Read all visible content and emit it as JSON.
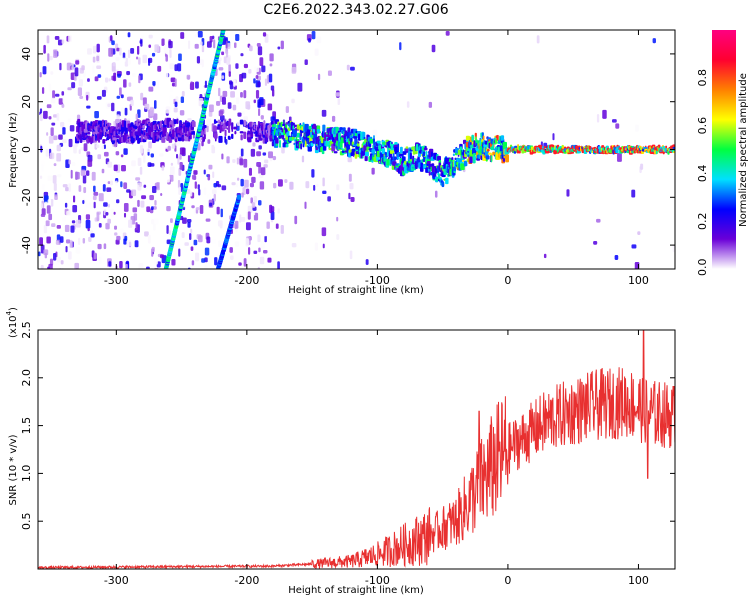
{
  "title": "C2E6.2022.343.02.27.G06",
  "chart_data": [
    {
      "type": "heatmap",
      "name": "spectrogram",
      "xlabel": "Height of straight line (km)",
      "ylabel": "Frequency (Hz)",
      "xlim": [
        -360,
        128
      ],
      "ylim": [
        -50,
        50
      ],
      "xticks": [
        -300,
        -200,
        -100,
        0,
        100
      ],
      "xtick_labels": [
        "-300",
        "-200",
        "-100",
        "0",
        "100"
      ],
      "yticks": [
        -40,
        -20,
        0,
        20,
        40
      ],
      "ytick_labels": [
        "-40",
        "-20",
        "0",
        "20",
        "40"
      ],
      "colorbar": {
        "label": "Normalized spectral amplitude",
        "range": [
          0,
          1
        ],
        "ticks": [
          0.0,
          0.2,
          0.4,
          0.6,
          0.8
        ],
        "tick_labels": [
          "0.0",
          "0.2",
          "0.4",
          "0.6",
          "0.8"
        ],
        "colormap": [
          "#ffffff",
          "#6a00d8",
          "#0000ff",
          "#00e0ff",
          "#00ff40",
          "#ffff00",
          "#ff8000",
          "#ff0030",
          "#ff0080"
        ]
      },
      "main_signal": [
        {
          "x": -330,
          "y": 8
        },
        {
          "x": -300,
          "y": 7
        },
        {
          "x": -260,
          "y": 8
        },
        {
          "x": -200,
          "y": 8
        },
        {
          "x": -180,
          "y": 7
        },
        {
          "x": -160,
          "y": 6
        },
        {
          "x": -140,
          "y": 4
        },
        {
          "x": -120,
          "y": 3
        },
        {
          "x": -100,
          "y": 0
        },
        {
          "x": -90,
          "y": -2
        },
        {
          "x": -80,
          "y": -5
        },
        {
          "x": -70,
          "y": -3
        },
        {
          "x": -60,
          "y": -5
        },
        {
          "x": -50,
          "y": -10
        },
        {
          "x": -40,
          "y": -5
        },
        {
          "x": -30,
          "y": 0
        },
        {
          "x": -20,
          "y": 1
        },
        {
          "x": -10,
          "y": 1
        },
        {
          "x": 0,
          "y": 0
        },
        {
          "x": 50,
          "y": 0
        },
        {
          "x": 100,
          "y": 0
        },
        {
          "x": 128,
          "y": 0
        }
      ],
      "diagonal_trace": {
        "x_start": -262,
        "y_start": -50,
        "x_end": -218,
        "y_end": 50
      },
      "second_trace": {
        "x_start": -222,
        "y_start": -50,
        "x_end": -206,
        "y_end": -20
      }
    },
    {
      "type": "line",
      "name": "snr",
      "xlabel": "Height of straight line (km)",
      "ylabel": "SNR (10 * v/v)",
      "scale_label": "(x10",
      "scale_exp": "4",
      "scale_close": ")",
      "xlim": [
        -360,
        128
      ],
      "ylim": [
        0,
        25000
      ],
      "xticks": [
        -300,
        -200,
        -100,
        0,
        100
      ],
      "xtick_labels": [
        "-300",
        "-200",
        "-100",
        "0",
        "100"
      ],
      "yticks": [
        5000,
        10000,
        15000,
        20000,
        25000
      ],
      "ytick_labels": [
        "0.5",
        "1.0",
        "1.5",
        "2.0",
        "2.5"
      ],
      "color": "#e83030",
      "trend": [
        {
          "x": -360,
          "y": 150
        },
        {
          "x": -250,
          "y": 250
        },
        {
          "x": -180,
          "y": 300
        },
        {
          "x": -140,
          "y": 600
        },
        {
          "x": -120,
          "y": 800
        },
        {
          "x": -100,
          "y": 1500
        },
        {
          "x": -80,
          "y": 2500
        },
        {
          "x": -60,
          "y": 3500
        },
        {
          "x": -40,
          "y": 5000
        },
        {
          "x": -30,
          "y": 7000
        },
        {
          "x": -20,
          "y": 9000
        },
        {
          "x": -10,
          "y": 11000
        },
        {
          "x": 0,
          "y": 12500
        },
        {
          "x": 10,
          "y": 13500
        },
        {
          "x": 30,
          "y": 15500
        },
        {
          "x": 50,
          "y": 16500
        },
        {
          "x": 70,
          "y": 17200
        },
        {
          "x": 90,
          "y": 17500
        },
        {
          "x": 100,
          "y": 17000
        },
        {
          "x": 110,
          "y": 16300
        },
        {
          "x": 128,
          "y": 16000
        }
      ],
      "peaks": [
        {
          "x": -22,
          "y": 16500
        },
        {
          "x": 104,
          "y": 25000
        },
        {
          "x": 107,
          "y": 9500
        }
      ]
    }
  ]
}
